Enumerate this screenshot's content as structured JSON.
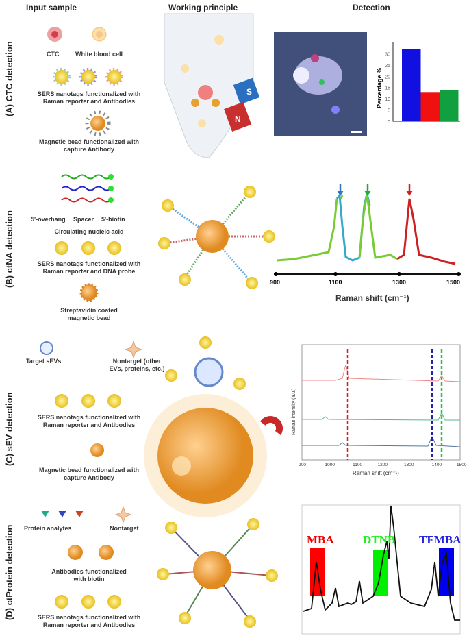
{
  "headers": {
    "input": "Input sample",
    "principle": "Working principle",
    "detection": "Detection"
  },
  "rows": {
    "a": {
      "label": "(A) CTC detection",
      "ctc": "CTC",
      "wbc": "White blood cell",
      "sers1": "SERS nanotags functionalized with",
      "sers2": "Raman reporter and Antibodies",
      "bead1": "Magnetic bead functionalized with",
      "bead2": "capture Antibody",
      "magnet_s": "S",
      "magnet_n": "N",
      "chart": {
        "ylabel": "Percentage %",
        "yticks": [
          "0",
          "5",
          "10",
          "15",
          "20",
          "25",
          "30"
        ],
        "values": [
          32,
          13,
          14
        ],
        "colors": [
          "#1010e0",
          "#f01010",
          "#10a040"
        ]
      }
    },
    "b": {
      "label": "(B) ctNA detection",
      "overhang": "5'-overhang",
      "spacer": "Spacer",
      "biotin": "5'-biotin",
      "cna": "Circulating nucleic acid",
      "sers1": "SERS nanotags functionalized with",
      "sers2": "Raman reporter and DNA probe",
      "bead1": "Streptavidin coated",
      "bead2": "magnetic bead",
      "chart": {
        "xlabel": "Raman shift (cm⁻¹)",
        "xticks": [
          "900",
          "1100",
          "1300",
          "1500"
        ]
      }
    },
    "c": {
      "label": "(C) sEV detection",
      "target": "Target sEVs",
      "nontarget1": "Nontarget (other",
      "nontarget2": "EVs, proteins, etc.)",
      "sers1": "SERS nanotags functionalized with",
      "sers2": "Raman reporter and Antibodies",
      "bead1": "Magnetic bead functionalized with",
      "bead2": "capture Antibody",
      "chart": {
        "ylabel": "Raman intensity (a.u.)",
        "xlabel": "Raman shift (cm⁻¹)",
        "xticks": [
          "900",
          "1000",
          "-1100",
          "1200",
          "1300",
          "-1400",
          "1500"
        ]
      }
    },
    "d": {
      "label": "(D) ctProtein detection",
      "analytes": "Protein analytes",
      "nontarget": "Nontarget",
      "ab1": "Antibodies functionalized",
      "ab2": "with biotin",
      "sers1": "SERS nanotags functionalized with",
      "sers2": "Raman reporter and Antibodies",
      "chart": {
        "mba": "MBA",
        "dtnb": "DTNB",
        "tfmba": "TFMBA"
      }
    }
  }
}
